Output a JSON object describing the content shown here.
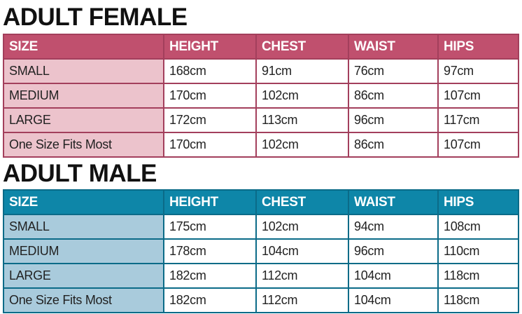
{
  "columns": [
    "SIZE",
    "HEIGHT",
    "CHEST",
    "WAIST",
    "HIPS"
  ],
  "female": {
    "title": "ADULT FEMALE",
    "rows": [
      [
        "SMALL",
        "168cm",
        "91cm",
        "76cm",
        "97cm"
      ],
      [
        "MEDIUM",
        "170cm",
        "102cm",
        "86cm",
        "107cm"
      ],
      [
        "LARGE",
        "172cm",
        "113cm",
        "96cm",
        "117cm"
      ],
      [
        "One Size Fits Most",
        "170cm",
        "102cm",
        "86cm",
        "107cm"
      ]
    ]
  },
  "male": {
    "title": "ADULT MALE",
    "rows": [
      [
        "SMALL",
        "175cm",
        "102cm",
        "94cm",
        "108cm"
      ],
      [
        "MEDIUM",
        "178cm",
        "104cm",
        "96cm",
        "110cm"
      ],
      [
        "LARGE",
        "182cm",
        "112cm",
        "104cm",
        "118cm"
      ],
      [
        "One Size Fits Most",
        "182cm",
        "112cm",
        "104cm",
        "118cm"
      ]
    ]
  },
  "colors": {
    "female_header": "#c0506e",
    "female_size_cell": "#ecc3cc",
    "male_header": "#0e86a8",
    "male_size_cell": "#a9cbdc"
  }
}
